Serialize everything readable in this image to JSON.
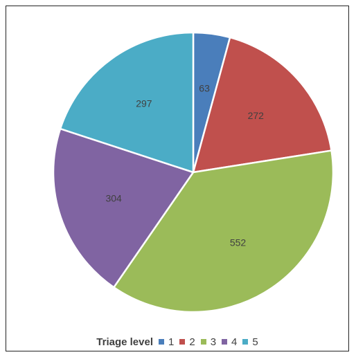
{
  "chart_data": {
    "type": "pie",
    "categories": [
      "1",
      "2",
      "3",
      "4",
      "5"
    ],
    "values": [
      63,
      272,
      552,
      304,
      297
    ],
    "colors": [
      "#4a7ebb",
      "#c0504d",
      "#9bbb59",
      "#8064a2",
      "#4bacc6"
    ],
    "legend_title": "Triage level",
    "legend_position": "bottom",
    "data_labels": [
      "63",
      "272",
      "552",
      "304",
      "297"
    ]
  }
}
